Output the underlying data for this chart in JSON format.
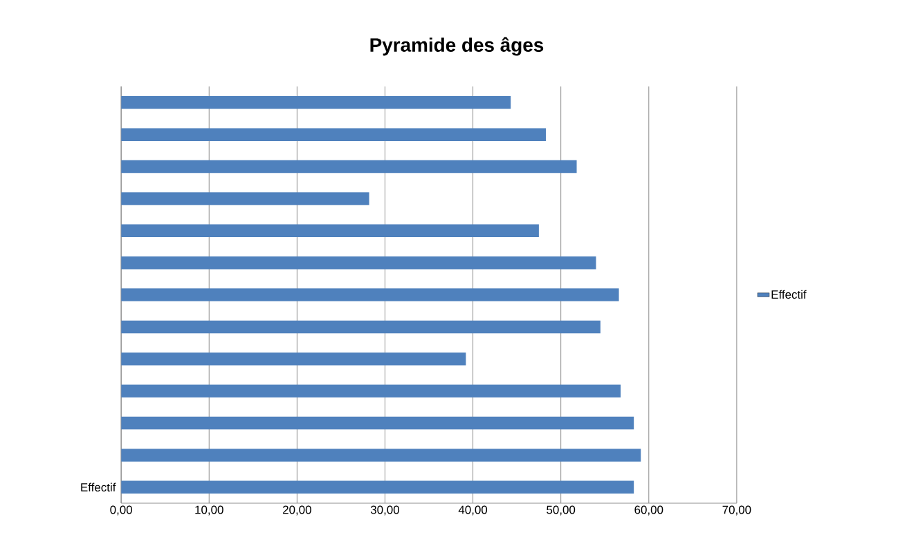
{
  "chart_data": {
    "type": "bar",
    "orientation": "horizontal",
    "title": "Pyramide des âges",
    "categories": [
      null,
      null,
      null,
      null,
      null,
      null,
      null,
      null,
      null,
      null,
      null,
      null,
      "Effectif"
    ],
    "series": [
      {
        "name": "Effectif",
        "color": "#4f81bd",
        "values": [
          44.3,
          48.3,
          51.8,
          28.2,
          47.5,
          54.0,
          56.6,
          54.5,
          39.2,
          56.8,
          58.3,
          59.1,
          58.3
        ]
      }
    ],
    "xlim": [
      0,
      70
    ],
    "xticks": [
      {
        "value": 0,
        "label": "0,00"
      },
      {
        "value": 10,
        "label": "10,00"
      },
      {
        "value": 20,
        "label": "20,00"
      },
      {
        "value": 30,
        "label": "30,00"
      },
      {
        "value": 40,
        "label": "40,00"
      },
      {
        "value": 50,
        "label": "50,00"
      },
      {
        "value": 60,
        "label": "60,00"
      },
      {
        "value": 70,
        "label": "70,00"
      }
    ],
    "grid": "x",
    "legend": "right"
  }
}
